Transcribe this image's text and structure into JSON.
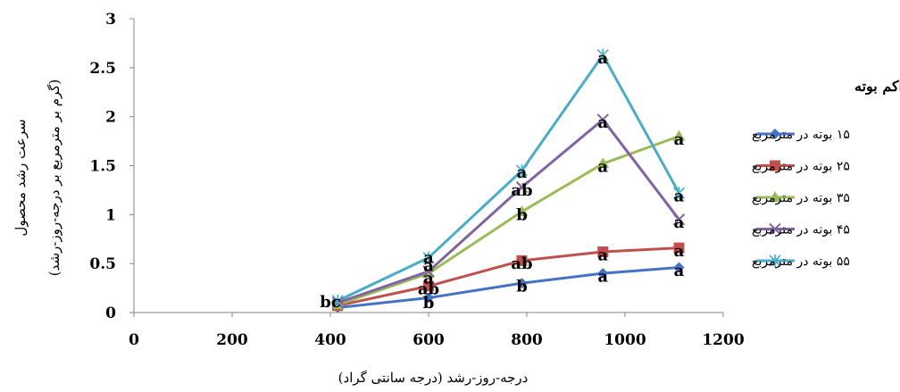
{
  "chart_data": {
    "type": "line",
    "xlabel": "درجه-روز-رشد (درجه سانتی گراد)",
    "ylabel_line1": "سرعت رشد محصول",
    "ylabel_line2": "(گرم بر مترمربع بر درجه-روز-رشد)",
    "xlim": [
      0,
      1200
    ],
    "ylim": [
      0,
      3
    ],
    "x_ticks": [
      "0",
      "200",
      "400",
      "600",
      "800",
      "1000",
      "1200"
    ],
    "y_ticks": [
      "0",
      "0.5",
      "1",
      "1.5",
      "2",
      "2.5",
      "3"
    ],
    "grid": false,
    "legend_position": "right",
    "legend_title": "تراکم بوته",
    "x": [
      415,
      600,
      790,
      955,
      1110
    ],
    "series": [
      {
        "name": "۱۵ بوته در مترمربع",
        "color": "#4472c4",
        "marker": "diamond",
        "values": [
          0.05,
          0.15,
          0.3,
          0.4,
          0.46
        ]
      },
      {
        "name": "۲۵ بوته در مترمربع",
        "color": "#c0504d",
        "marker": "square",
        "values": [
          0.07,
          0.27,
          0.53,
          0.62,
          0.66
        ]
      },
      {
        "name": "۳۵ بوته در مترمربع",
        "color": "#9bbb59",
        "marker": "triangle",
        "values": [
          0.08,
          0.4,
          1.03,
          1.52,
          1.8
        ]
      },
      {
        "name": "۴۵ بوته در مترمربع",
        "color": "#8064a2",
        "marker": "x",
        "values": [
          0.1,
          0.42,
          1.28,
          1.97,
          0.95
        ]
      },
      {
        "name": "۵۵ بوته در مترمربع",
        "color": "#4bacc6",
        "marker": "star",
        "values": [
          0.12,
          0.56,
          1.45,
          2.63,
          1.22
        ]
      }
    ],
    "annotations": [
      {
        "text": "bc",
        "x": 400,
        "y": 0.11
      },
      {
        "text": "b",
        "x": 600,
        "y": 0.1
      },
      {
        "text": "ab",
        "x": 600,
        "y": 0.24
      },
      {
        "text": "a",
        "x": 600,
        "y": 0.35
      },
      {
        "text": "a",
        "x": 600,
        "y": 0.48
      },
      {
        "text": "a",
        "x": 600,
        "y": 0.56
      },
      {
        "text": "b",
        "x": 790,
        "y": 0.27
      },
      {
        "text": "ab",
        "x": 790,
        "y": 0.5
      },
      {
        "text": "b",
        "x": 790,
        "y": 1.0
      },
      {
        "text": "ab",
        "x": 790,
        "y": 1.25
      },
      {
        "text": "a",
        "x": 790,
        "y": 1.43
      },
      {
        "text": "a",
        "x": 955,
        "y": 0.37
      },
      {
        "text": "a",
        "x": 955,
        "y": 0.59
      },
      {
        "text": "a",
        "x": 955,
        "y": 1.49
      },
      {
        "text": "a",
        "x": 955,
        "y": 1.94
      },
      {
        "text": "a",
        "x": 955,
        "y": 2.6
      },
      {
        "text": "a",
        "x": 1110,
        "y": 0.43
      },
      {
        "text": "a",
        "x": 1110,
        "y": 0.63
      },
      {
        "text": "a",
        "x": 1110,
        "y": 0.92
      },
      {
        "text": "a",
        "x": 1110,
        "y": 1.19
      },
      {
        "text": "a",
        "x": 1110,
        "y": 1.77
      }
    ]
  }
}
